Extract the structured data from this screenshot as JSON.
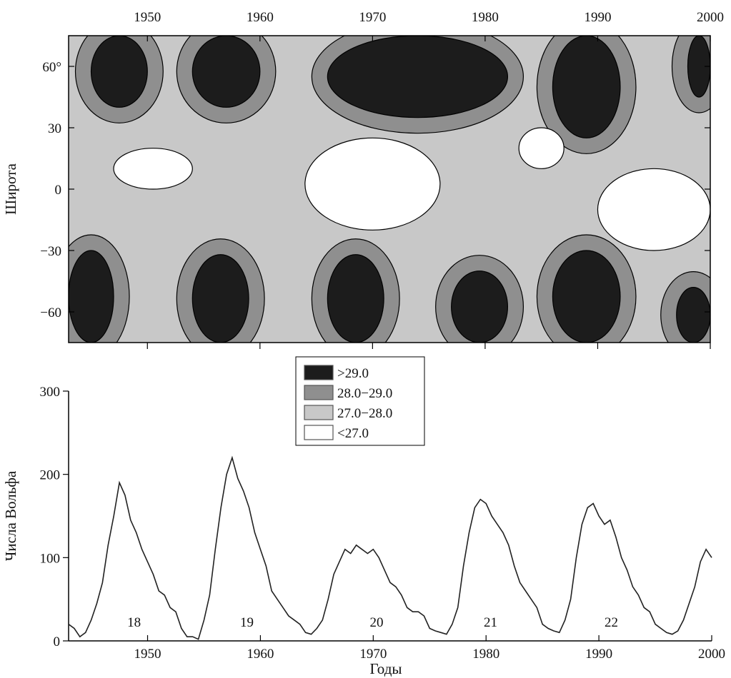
{
  "colors": {
    "level_gt29": "#1c1c1c",
    "level_28_29": "#8f8f8f",
    "level_27_28": "#c8c8c8",
    "level_lt27": "#ffffff",
    "line": "#222222"
  },
  "chart_data": [
    {
      "type": "heatmap",
      "description_level": "contour map of latitude vs year",
      "ylabel": "Широта",
      "x_ticks": [
        "1950",
        "1960",
        "1970",
        "1980",
        "1990",
        "2000"
      ],
      "y_ticks": [
        "60°",
        "30",
        "0",
        "−30",
        "−60"
      ],
      "xlim": [
        1943,
        2000
      ],
      "ylim": [
        -75,
        75
      ],
      "legend": [
        {
          "label": ">29.0",
          "color": "#1c1c1c"
        },
        {
          "label": "28.0−29.0",
          "color": "#8f8f8f"
        },
        {
          "label": "27.0−28.0",
          "color": "#c8c8c8"
        },
        {
          "label": "<27.0",
          "color": "#ffffff"
        }
      ],
      "regions": [
        {
          "level": "level_gt29",
          "x_range": [
            1945,
            1950
          ],
          "lat_range": [
            40,
            75
          ]
        },
        {
          "level": "level_gt29",
          "x_range": [
            1954,
            1960
          ],
          "lat_range": [
            40,
            75
          ]
        },
        {
          "level": "level_gt29",
          "x_range": [
            1966,
            1982
          ],
          "lat_range": [
            35,
            75
          ]
        },
        {
          "level": "level_gt29",
          "x_range": [
            1986,
            1992
          ],
          "lat_range": [
            25,
            75
          ]
        },
        {
          "level": "level_gt29",
          "x_range": [
            1998,
            2000
          ],
          "lat_range": [
            45,
            75
          ]
        },
        {
          "level": "level_gt29",
          "x_range": [
            1943,
            1947
          ],
          "lat_range": [
            -75,
            -30
          ]
        },
        {
          "level": "level_gt29",
          "x_range": [
            1954,
            1959
          ],
          "lat_range": [
            -75,
            -32
          ]
        },
        {
          "level": "level_gt29",
          "x_range": [
            1966,
            1971
          ],
          "lat_range": [
            -75,
            -32
          ]
        },
        {
          "level": "level_gt29",
          "x_range": [
            1977,
            1982
          ],
          "lat_range": [
            -75,
            -40
          ]
        },
        {
          "level": "level_gt29",
          "x_range": [
            1986,
            1992
          ],
          "lat_range": [
            -75,
            -30
          ]
        },
        {
          "level": "level_gt29",
          "x_range": [
            1997,
            2000
          ],
          "lat_range": [
            -75,
            -48
          ]
        },
        {
          "level": "level_lt27",
          "x_range": [
            1947,
            1954
          ],
          "lat_range": [
            0,
            20
          ]
        },
        {
          "level": "level_lt27",
          "x_range": [
            1964,
            1976
          ],
          "lat_range": [
            -20,
            25
          ]
        },
        {
          "level": "level_lt27",
          "x_range": [
            1983,
            1987
          ],
          "lat_range": [
            10,
            30
          ]
        },
        {
          "level": "level_lt27",
          "x_range": [
            1990,
            2000
          ],
          "lat_range": [
            -30,
            10
          ]
        }
      ]
    },
    {
      "type": "line",
      "ylabel": "Числа Вольфа",
      "xlabel": "Годы",
      "x_ticks": [
        "1950",
        "1960",
        "1970",
        "1980",
        "1990",
        "2000"
      ],
      "y_ticks": [
        "0",
        "100",
        "200",
        "300"
      ],
      "xlim": [
        1943,
        2000
      ],
      "ylim": [
        0,
        300
      ],
      "cycle_labels": [
        {
          "text": "18",
          "x": 1948.8
        },
        {
          "text": "19",
          "x": 1958.8
        },
        {
          "text": "20",
          "x": 1970.3
        },
        {
          "text": "21",
          "x": 1980.4
        },
        {
          "text": "22",
          "x": 1991.1
        }
      ],
      "series": [
        {
          "x": [
            1943.0,
            1943.5,
            1944.0,
            1944.5,
            1945.0,
            1945.5,
            1946.0,
            1946.5,
            1947.0,
            1947.5,
            1948.0,
            1948.5,
            1949.0,
            1949.5,
            1950.0,
            1950.5,
            1951.0,
            1951.5,
            1952.0,
            1952.5,
            1953.0,
            1953.5,
            1954.0,
            1954.5,
            1955.0,
            1955.5,
            1956.0,
            1956.5,
            1957.0,
            1957.5,
            1958.0,
            1958.5,
            1959.0,
            1959.5,
            1960.0,
            1960.5,
            1961.0,
            1961.5,
            1962.0,
            1962.5,
            1963.0,
            1963.5,
            1964.0,
            1964.5,
            1965.0,
            1965.5,
            1966.0,
            1966.5,
            1967.0,
            1967.5,
            1968.0,
            1968.5,
            1969.0,
            1969.5,
            1970.0,
            1970.5,
            1971.0,
            1971.5,
            1972.0,
            1972.5,
            1973.0,
            1973.5,
            1974.0,
            1974.5,
            1975.0,
            1975.5,
            1976.0,
            1976.5,
            1977.0,
            1977.5,
            1978.0,
            1978.5,
            1979.0,
            1979.5,
            1980.0,
            1980.5,
            1981.0,
            1981.5,
            1982.0,
            1982.5,
            1983.0,
            1983.5,
            1984.0,
            1984.5,
            1985.0,
            1985.5,
            1986.0,
            1986.5,
            1987.0,
            1987.5,
            1988.0,
            1988.5,
            1989.0,
            1989.5,
            1990.0,
            1990.5,
            1991.0,
            1991.5,
            1992.0,
            1992.5,
            1993.0,
            1993.5,
            1994.0,
            1994.5,
            1995.0,
            1995.5,
            1996.0,
            1996.5,
            1997.0,
            1997.5,
            1998.0,
            1998.5,
            1999.0,
            1999.5,
            2000.0
          ],
          "y": [
            20,
            15,
            5,
            10,
            25,
            45,
            70,
            115,
            150,
            190,
            175,
            145,
            130,
            110,
            95,
            80,
            60,
            55,
            40,
            35,
            15,
            5,
            5,
            2,
            25,
            55,
            110,
            160,
            200,
            220,
            195,
            180,
            160,
            130,
            110,
            90,
            60,
            50,
            40,
            30,
            25,
            20,
            10,
            8,
            15,
            25,
            50,
            80,
            95,
            110,
            105,
            115,
            110,
            105,
            110,
            100,
            85,
            70,
            65,
            55,
            40,
            35,
            35,
            30,
            15,
            12,
            10,
            8,
            20,
            40,
            90,
            130,
            160,
            170,
            165,
            150,
            140,
            130,
            115,
            90,
            70,
            60,
            50,
            40,
            20,
            15,
            12,
            10,
            25,
            50,
            100,
            140,
            160,
            165,
            150,
            140,
            145,
            125,
            100,
            85,
            65,
            55,
            40,
            35,
            20,
            15,
            10,
            8,
            12,
            25,
            45,
            65,
            95,
            110,
            100
          ]
        }
      ]
    }
  ]
}
